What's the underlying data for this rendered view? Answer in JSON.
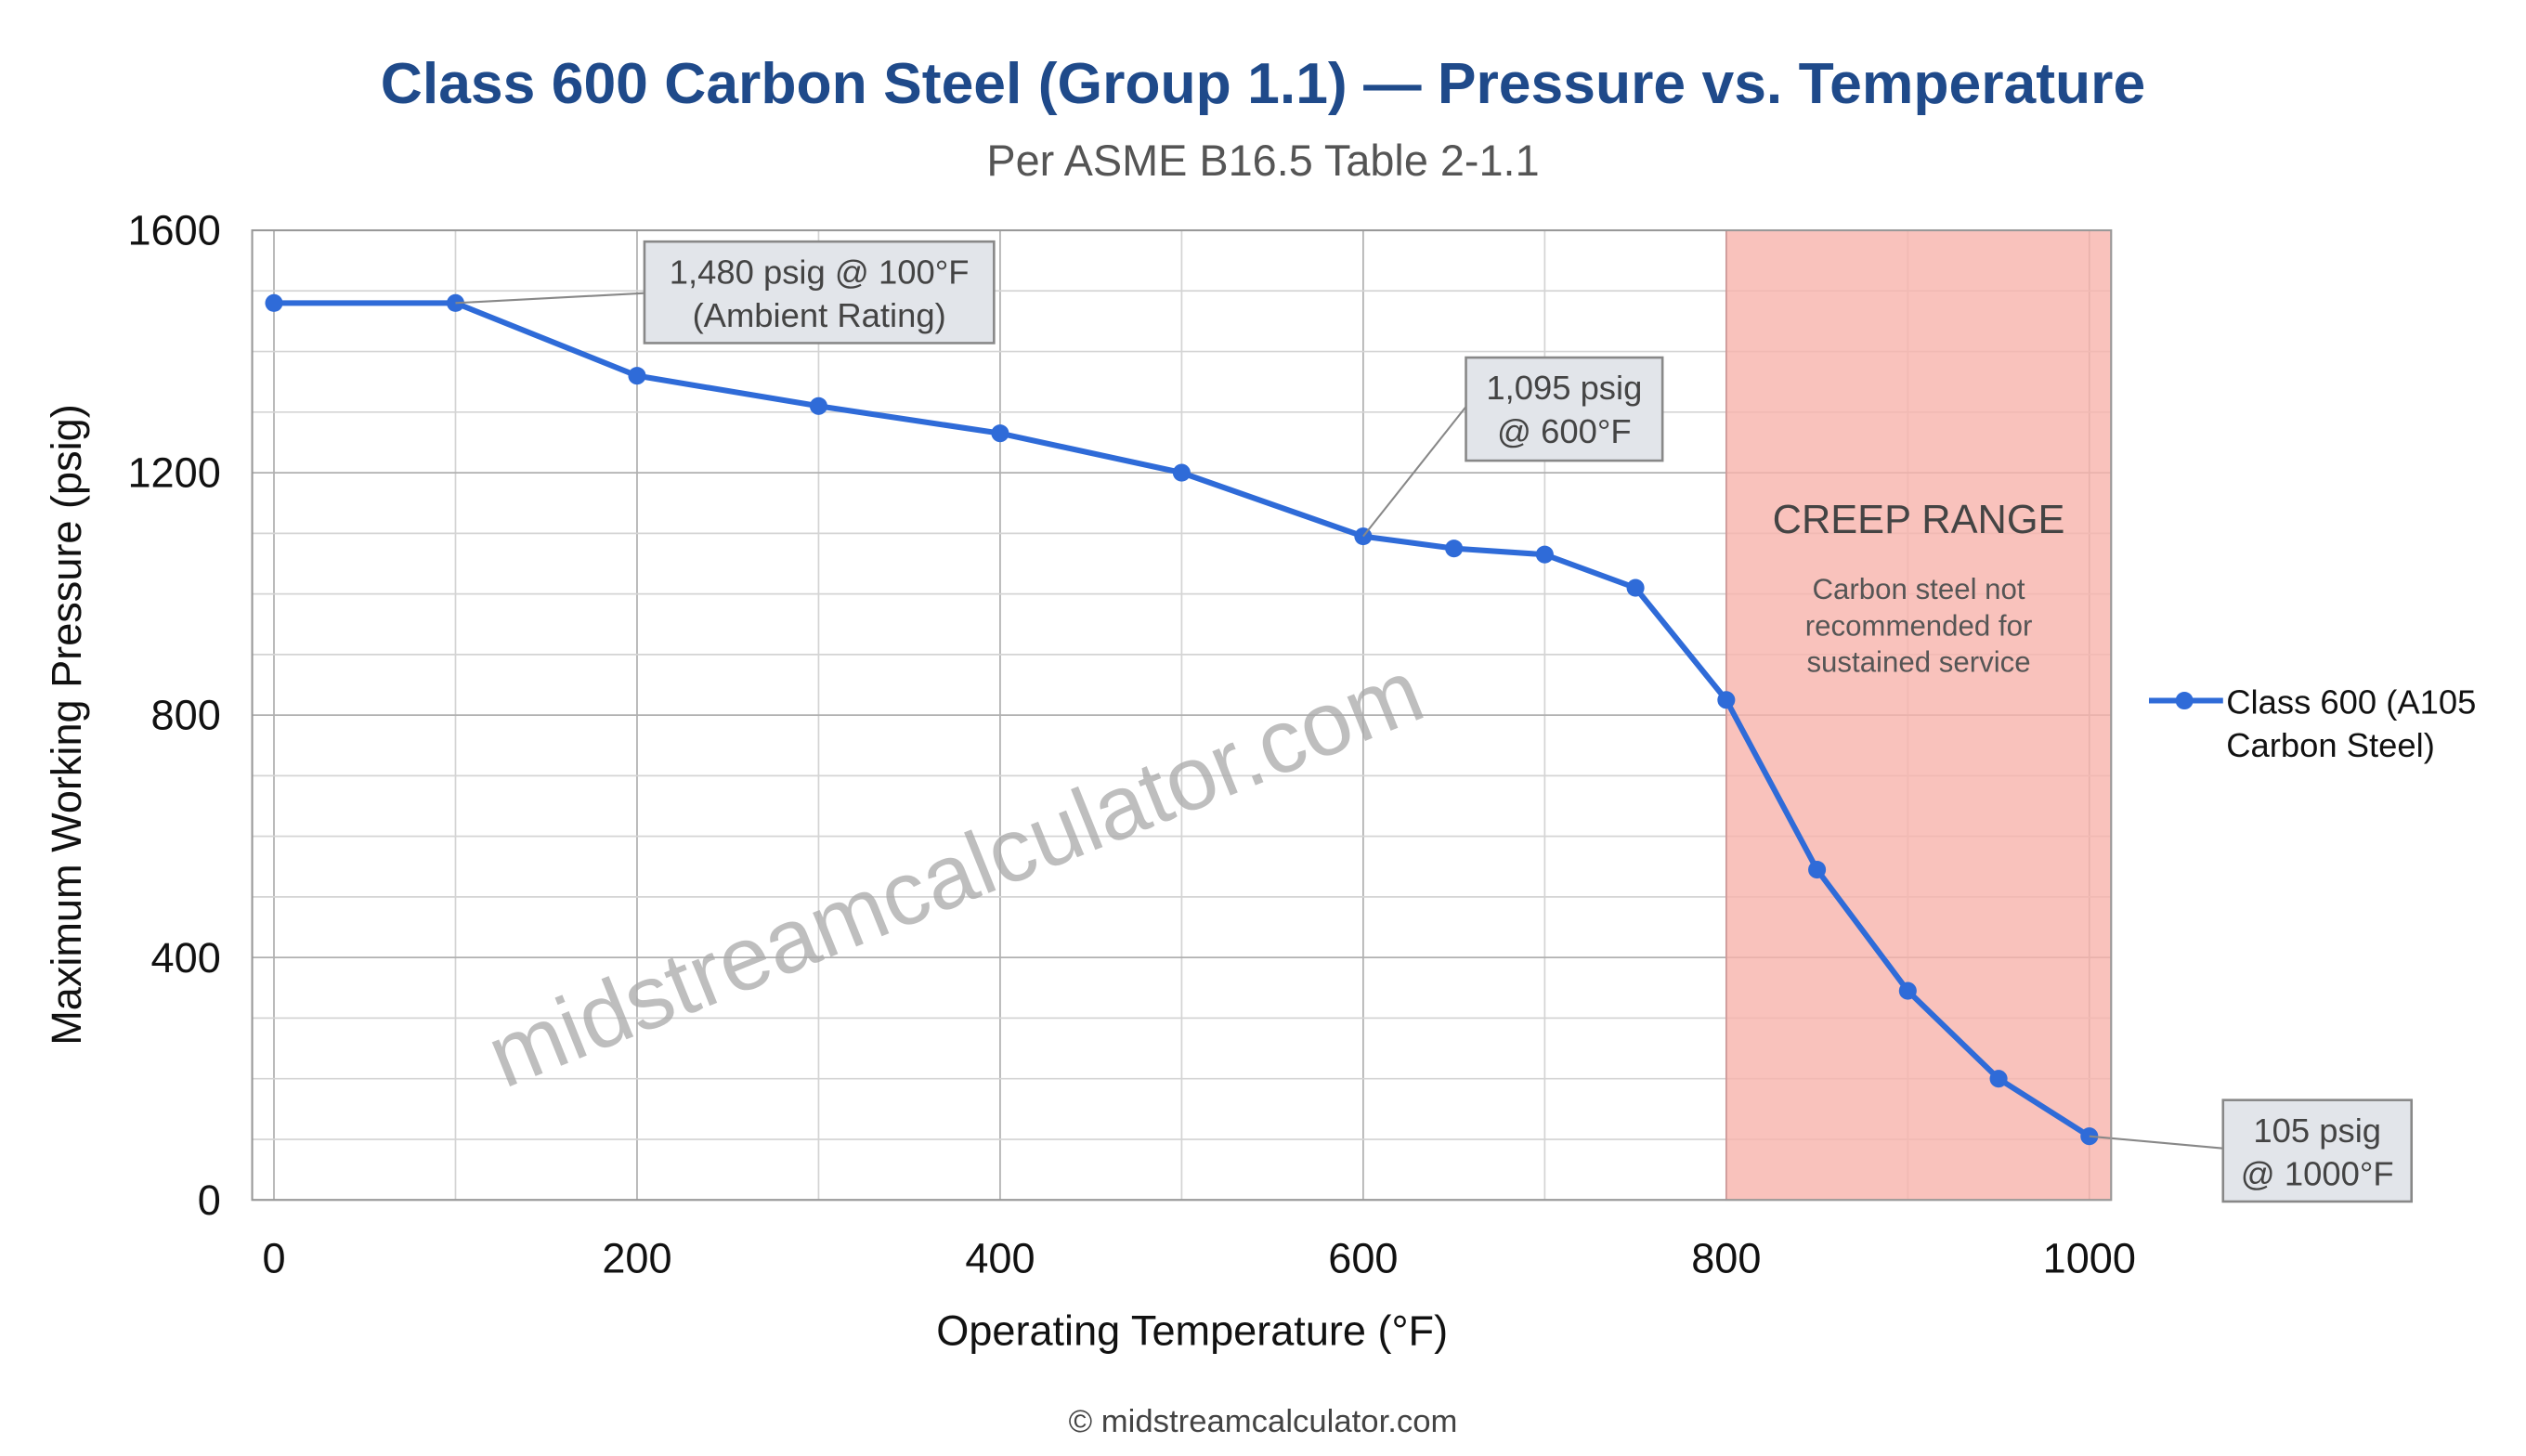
{
  "chart_data": {
    "type": "line",
    "title": "Class 600 Carbon Steel (Group 1.1) — Pressure vs. Temperature",
    "subtitle": "Per ASME B16.5 Table 2-1.1",
    "xlabel": "Operating Temperature (°F)",
    "ylabel": "Maximum Working Pressure (psig)",
    "xlim": [
      -12,
      1012
    ],
    "ylim": [
      0,
      1600
    ],
    "xticks": [
      0,
      200,
      400,
      600,
      800,
      1000
    ],
    "yticks": [
      0,
      400,
      800,
      1200,
      1600
    ],
    "grid": true,
    "legend_position": "right",
    "series": [
      {
        "name": "Class 600 (A105 Carbon Steel)",
        "color": "#2f6bd8",
        "x": [
          0,
          100,
          200,
          300,
          400,
          500,
          600,
          650,
          700,
          750,
          800,
          850,
          900,
          950,
          1000
        ],
        "y": [
          1480,
          1480,
          1360,
          1310,
          1265,
          1200,
          1095,
          1075,
          1065,
          1010,
          825,
          545,
          345,
          200,
          105
        ]
      }
    ],
    "shaded_region": {
      "x_from": 800,
      "x_to": 1012,
      "color": "#f7b3ab",
      "title": "CREEP RANGE",
      "lines": [
        "Carbon steel not",
        "recommended for",
        "sustained service"
      ]
    },
    "annotations": [
      {
        "x": 100,
        "y": 1480,
        "lines": [
          "1,480 psig @ 100°F",
          "(Ambient Rating)"
        ]
      },
      {
        "x": 600,
        "y": 1095,
        "lines": [
          "1,095 psig",
          "@ 600°F"
        ]
      },
      {
        "x": 1000,
        "y": 105,
        "lines": [
          "105 psig",
          "@ 1000°F"
        ]
      }
    ],
    "legend_lines": [
      "Class 600 (A105",
      "Carbon Steel)"
    ],
    "watermark": "midstreamcalculator.com",
    "footer": "© midstreamcalculator.com",
    "colors": {
      "title": "#1f4a8a",
      "subtitle": "#555555",
      "grid": "#d4d4d4",
      "grid_major": "#b0b0b0"
    }
  }
}
